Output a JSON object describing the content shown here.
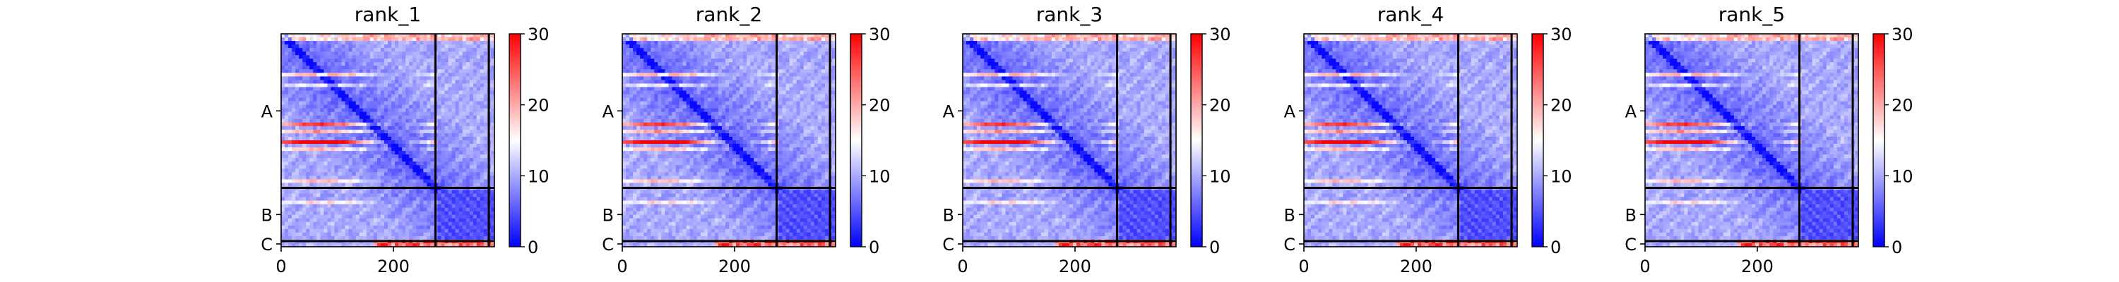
{
  "chart_data": [
    {
      "type": "heatmap",
      "title": "rank_1",
      "xlim": [
        0,
        380
      ],
      "ylim": [
        380,
        0
      ],
      "x_ticks": [
        0,
        200
      ],
      "chain_labels": [
        "A",
        "B",
        "C"
      ],
      "chain_boundaries": [
        275,
        370
      ],
      "colorbar": {
        "min": 0,
        "max": 30,
        "ticks": [
          0,
          10,
          20,
          30
        ],
        "colormap": "bwr"
      }
    },
    {
      "type": "heatmap",
      "title": "rank_2",
      "xlim": [
        0,
        380
      ],
      "ylim": [
        380,
        0
      ],
      "x_ticks": [
        0,
        200
      ],
      "chain_labels": [
        "A",
        "B",
        "C"
      ],
      "chain_boundaries": [
        275,
        370
      ],
      "colorbar": {
        "min": 0,
        "max": 30,
        "ticks": [
          0,
          10,
          20,
          30
        ],
        "colormap": "bwr"
      }
    },
    {
      "type": "heatmap",
      "title": "rank_3",
      "xlim": [
        0,
        380
      ],
      "ylim": [
        380,
        0
      ],
      "x_ticks": [
        0,
        200
      ],
      "chain_labels": [
        "A",
        "B",
        "C"
      ],
      "chain_boundaries": [
        275,
        370
      ],
      "colorbar": {
        "min": 0,
        "max": 30,
        "ticks": [
          0,
          10,
          20,
          30
        ],
        "colormap": "bwr"
      }
    },
    {
      "type": "heatmap",
      "title": "rank_4",
      "xlim": [
        0,
        380
      ],
      "ylim": [
        380,
        0
      ],
      "x_ticks": [
        0,
        200
      ],
      "chain_labels": [
        "A",
        "B",
        "C"
      ],
      "chain_boundaries": [
        275,
        370
      ],
      "colorbar": {
        "min": 0,
        "max": 30,
        "ticks": [
          0,
          10,
          20,
          30
        ],
        "colormap": "bwr"
      }
    },
    {
      "type": "heatmap",
      "title": "rank_5",
      "xlim": [
        0,
        380
      ],
      "ylim": [
        380,
        0
      ],
      "x_ticks": [
        0,
        200
      ],
      "chain_labels": [
        "A",
        "B",
        "C"
      ],
      "chain_boundaries": [
        275,
        370
      ],
      "colorbar": {
        "min": 0,
        "max": 30,
        "ticks": [
          0,
          10,
          20,
          30
        ],
        "colormap": "bwr"
      }
    }
  ]
}
